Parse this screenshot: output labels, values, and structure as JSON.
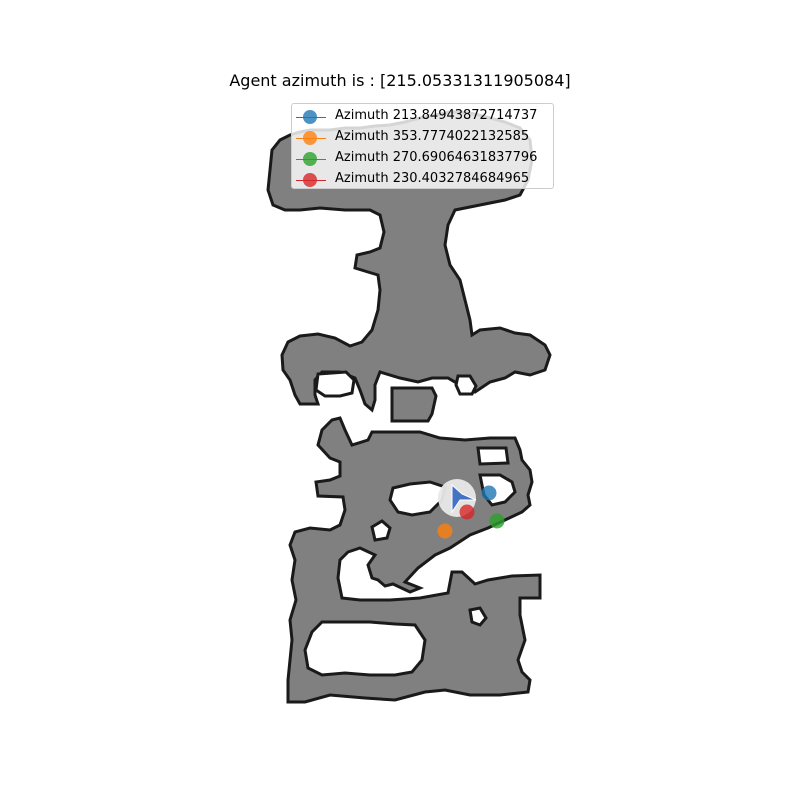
{
  "title": "Agent azimuth is : [215.05331311905084]",
  "legend": [
    {
      "label": "Azimuth 213.84943872714737",
      "color": "#1f77b4"
    },
    {
      "label": "Azimuth 353.7774022132585",
      "color": "#ff7f0e"
    },
    {
      "label": "Azimuth 270.69064631837796",
      "color": "#2ca02c"
    },
    {
      "label": "Azimuth 230.4032784684965",
      "color": "#d62728"
    }
  ],
  "map": {
    "floor_color": "#808080",
    "wall_color": "#1a1a1a",
    "agent": {
      "azimuth": 215.05331311905084,
      "color": "#4472c4"
    }
  }
}
